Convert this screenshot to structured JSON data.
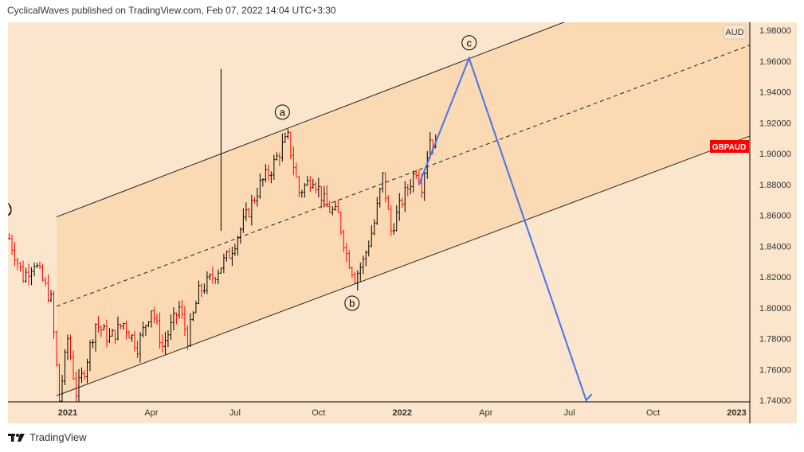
{
  "header": {
    "publish_line": "CyclicalWaves published on TradingView.com, Feb 07, 2022 14:04 UTC+3:30"
  },
  "footer": {
    "brand": "TradingView"
  },
  "colors": {
    "bg": "#fbe5cc",
    "channel": "#fbdab3",
    "up": "#000000",
    "down": "#ff0000",
    "projection": "#4a72e8",
    "symbol_badge": "#ff0000"
  },
  "chart_data": {
    "type": "candlestick",
    "symbol": "GBPAUD",
    "currency_label": "AUD",
    "y_ticks": [
      "1.96000",
      "1.94000",
      "1.92000",
      "1.90000",
      "1.88000",
      "1.86000",
      "1.84000",
      "1.82000",
      "1.80000",
      "1.78000",
      "1.76000",
      "1.74000"
    ],
    "y_tick_values": [
      1.96,
      1.94,
      1.92,
      1.9,
      1.88,
      1.86,
      1.84,
      1.82,
      1.8,
      1.78,
      1.76,
      1.74
    ],
    "top_tick_partial": "1.98000",
    "ylim": [
      1.74,
      1.985
    ],
    "x_ticks": [
      "2021",
      "Apr",
      "Jul",
      "Oct",
      "2022",
      "Apr",
      "Jul",
      "Oct",
      "2023"
    ],
    "x_tick_months": [
      0,
      3,
      6,
      9,
      12,
      15,
      18,
      21,
      24
    ],
    "xlim_months": [
      -2.1,
      24.7
    ],
    "price_path": [
      [
        -2.1,
        1.845
      ],
      [
        -1.6,
        1.82
      ],
      [
        -1.2,
        1.83
      ],
      [
        -0.6,
        1.805
      ],
      [
        -0.3,
        1.74
      ],
      [
        0.0,
        1.78
      ],
      [
        0.3,
        1.745
      ],
      [
        0.6,
        1.76
      ],
      [
        1.0,
        1.79
      ],
      [
        1.5,
        1.78
      ],
      [
        2.0,
        1.79
      ],
      [
        2.5,
        1.775
      ],
      [
        3.0,
        1.8
      ],
      [
        3.4,
        1.775
      ],
      [
        4.0,
        1.8
      ],
      [
        4.3,
        1.78
      ],
      [
        4.7,
        1.81
      ],
      [
        5.2,
        1.82
      ],
      [
        5.8,
        1.835
      ],
      [
        6.3,
        1.855
      ],
      [
        6.9,
        1.88
      ],
      [
        7.3,
        1.89
      ],
      [
        7.7,
        1.905
      ],
      [
        7.9,
        1.91
      ],
      [
        8.3,
        1.875
      ],
      [
        8.8,
        1.885
      ],
      [
        9.3,
        1.865
      ],
      [
        9.7,
        1.86
      ],
      [
        10.0,
        1.835
      ],
      [
        10.3,
        1.82
      ],
      [
        10.6,
        1.83
      ],
      [
        11.0,
        1.855
      ],
      [
        11.3,
        1.885
      ],
      [
        11.6,
        1.85
      ],
      [
        12.0,
        1.87
      ],
      [
        12.5,
        1.89
      ],
      [
        12.7,
        1.88
      ],
      [
        13.0,
        1.91
      ],
      [
        13.2,
        1.905
      ]
    ],
    "channel": {
      "upper": [
        [
          -0.4,
          1.859
        ],
        [
          17.9,
          1.986
        ]
      ],
      "middle": [
        [
          -0.4,
          1.801
        ],
        [
          24.7,
          1.972
        ]
      ],
      "lower": [
        [
          -0.4,
          1.743
        ],
        [
          24.7,
          1.913
        ]
      ]
    },
    "projection": [
      [
        12.6,
        1.88
      ],
      [
        14.4,
        1.962
      ],
      [
        18.6,
        1.74
      ],
      [
        18.8,
        1.744
      ]
    ],
    "spike": {
      "month": 5.5,
      "high": 1.955,
      "low": 1.85
    },
    "wave_labels": [
      {
        "label": "a",
        "month": 7.7,
        "price": 1.927
      },
      {
        "label": "b",
        "month": 10.2,
        "price": 1.803
      },
      {
        "label": "c",
        "month": 14.4,
        "price": 1.972
      }
    ],
    "partial_label": ")"
  }
}
